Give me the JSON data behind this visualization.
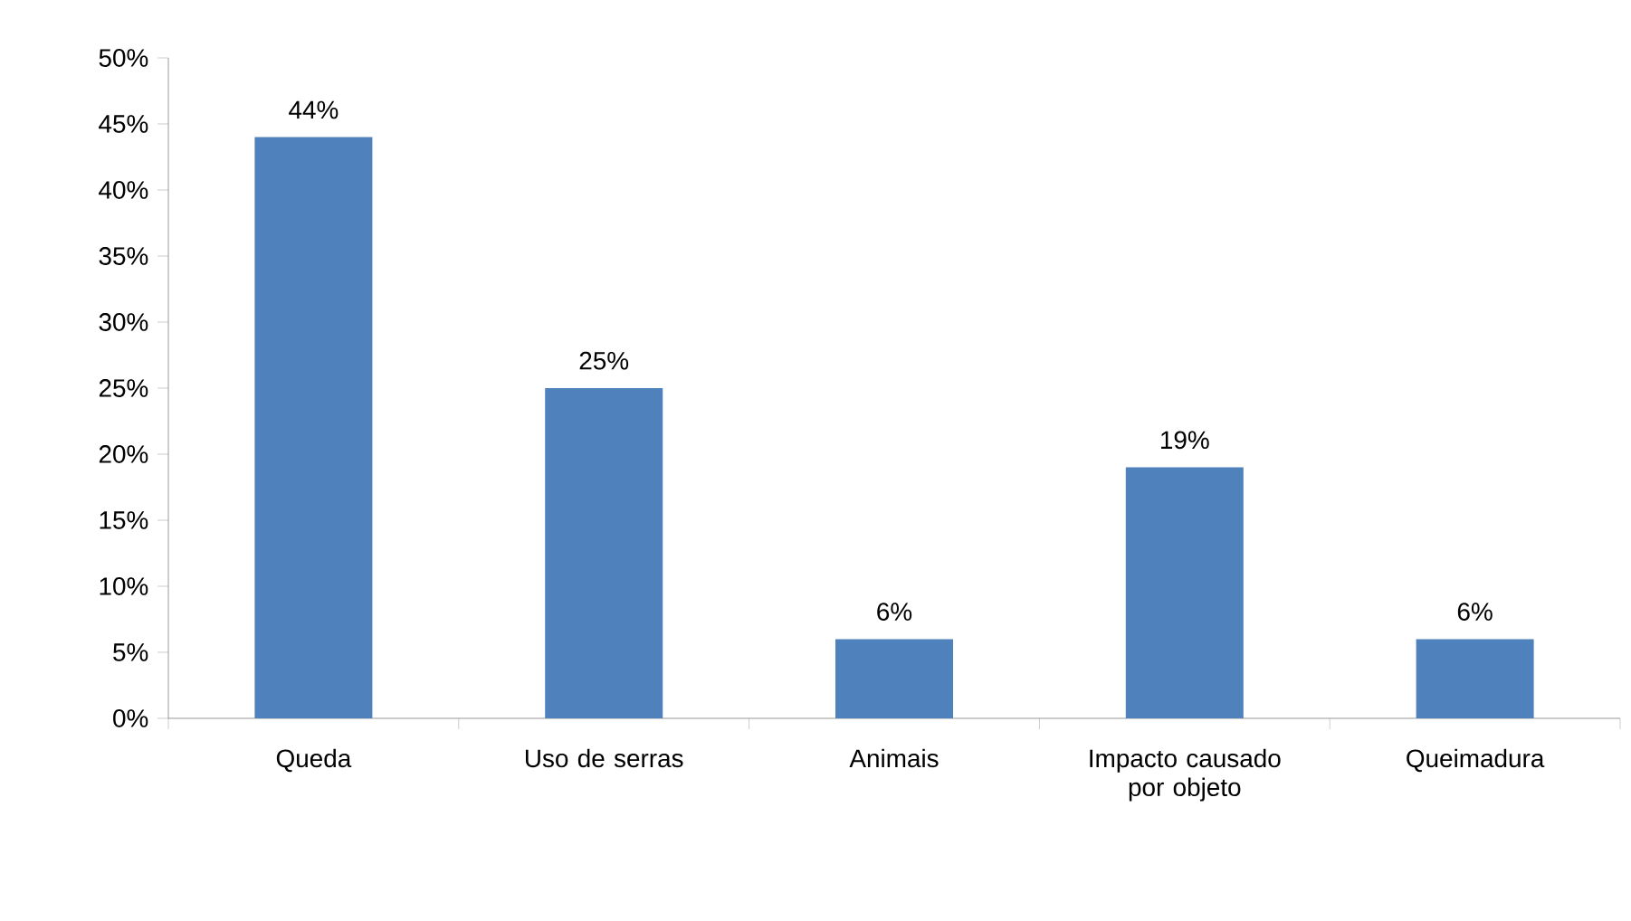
{
  "chart_data": {
    "type": "bar",
    "categories": [
      "Queda",
      "Uso de serras",
      "Animais",
      "Impacto causado por objeto",
      "Queimadura"
    ],
    "values": [
      44,
      25,
      6,
      19,
      6
    ],
    "color": "#4f81bd",
    "ylim": [
      0,
      50
    ],
    "yticks": [
      {
        "value": 0,
        "label": "0%"
      },
      {
        "value": 5,
        "label": "5%"
      },
      {
        "value": 10,
        "label": "10%"
      },
      {
        "value": 15,
        "label": "15%"
      },
      {
        "value": 20,
        "label": "20%"
      },
      {
        "value": 25,
        "label": "25%"
      },
      {
        "value": 30,
        "label": "30%"
      },
      {
        "value": 35,
        "label": "35%"
      },
      {
        "value": 40,
        "label": "40%"
      },
      {
        "value": 45,
        "label": "45%"
      },
      {
        "value": 50,
        "label": "50%"
      }
    ],
    "value_labels": [
      "44%",
      "25%",
      "6%",
      "19%",
      "6%"
    ],
    "grid": false
  }
}
